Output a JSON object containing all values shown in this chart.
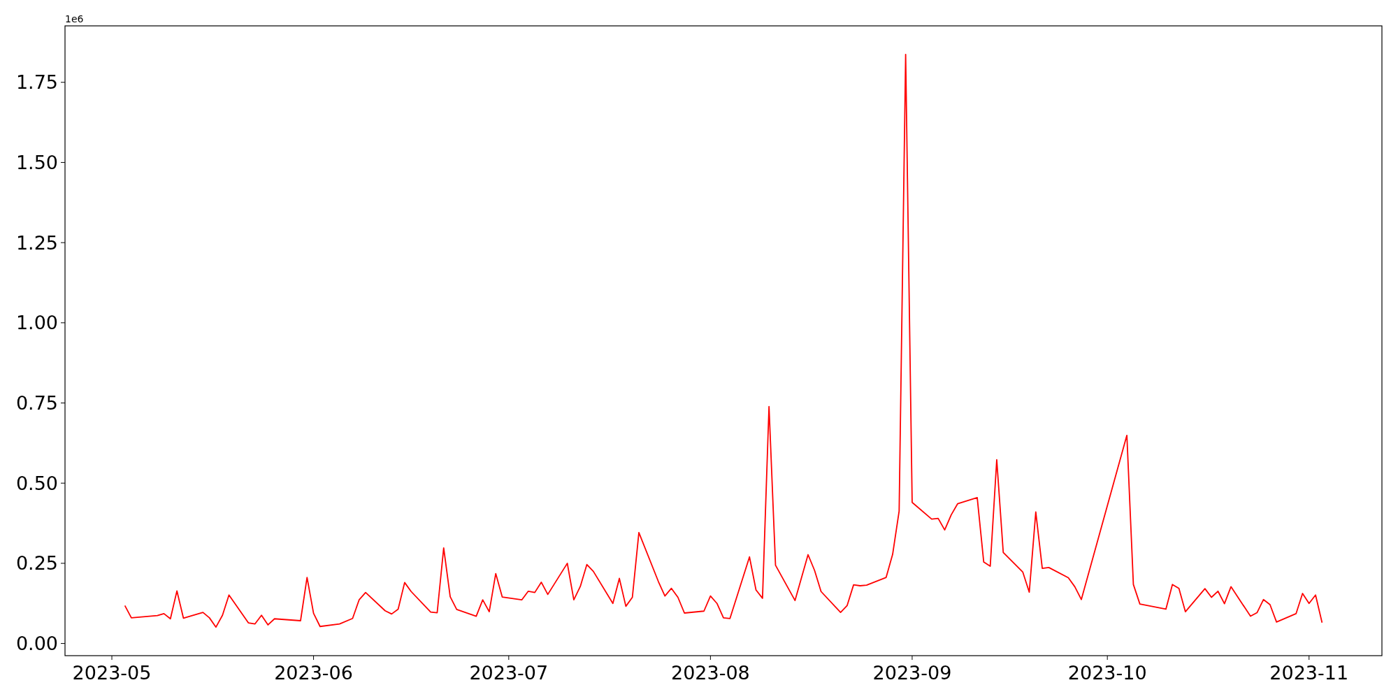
{
  "chart_data": {
    "type": "line",
    "annotations": [
      "1e6"
    ],
    "line_style": "solid",
    "marker": "none",
    "grid": false,
    "xlim": [
      "2023-04-23T19:12",
      "2023-11-12T04:48"
    ],
    "xticks": [
      {
        "value": "2023-05-01",
        "label": "2023-05"
      },
      {
        "value": "2023-06-01",
        "label": "2023-06"
      },
      {
        "value": "2023-07-01",
        "label": "2023-07"
      },
      {
        "value": "2023-08-01",
        "label": "2023-08"
      },
      {
        "value": "2023-09-01",
        "label": "2023-09"
      },
      {
        "value": "2023-10-01",
        "label": "2023-10"
      },
      {
        "value": "2023-11-01",
        "label": "2023-11"
      }
    ],
    "ylim": [
      -0.038,
      1.926
    ],
    "yticks": [
      {
        "value": 0,
        "label": "0.00"
      },
      0.25,
      {
        "value": 0.5,
        "label": "0.50"
      },
      0.75,
      {
        "value": 1,
        "label": "1.00"
      },
      1.25,
      {
        "value": 1.5,
        "label": "1.50"
      },
      1.75
    ],
    "x": [
      "2023-05-03",
      "2023-05-04",
      "2023-05-08",
      "2023-05-09",
      "2023-05-10",
      "2023-05-11",
      "2023-05-12",
      "2023-05-15",
      "2023-05-16",
      "2023-05-17",
      "2023-05-18",
      "2023-05-19",
      "2023-05-22",
      "2023-05-23",
      "2023-05-24",
      "2023-05-25",
      "2023-05-26",
      "2023-05-30",
      "2023-05-31",
      "2023-06-01",
      "2023-06-02",
      "2023-06-05",
      "2023-06-07",
      "2023-06-08",
      "2023-06-09",
      "2023-06-12",
      "2023-06-13",
      "2023-06-14",
      "2023-06-15",
      "2023-06-16",
      "2023-06-19",
      "2023-06-20",
      "2023-06-21",
      "2023-06-22",
      "2023-06-23",
      "2023-06-26",
      "2023-06-27",
      "2023-06-28",
      "2023-06-29",
      "2023-06-30",
      "2023-07-03",
      "2023-07-04",
      "2023-07-05",
      "2023-07-06",
      "2023-07-07",
      "2023-07-10",
      "2023-07-11",
      "2023-07-12",
      "2023-07-13",
      "2023-07-14",
      "2023-07-17",
      "2023-07-18",
      "2023-07-19",
      "2023-07-20",
      "2023-07-21",
      "2023-07-24",
      "2023-07-25",
      "2023-07-26",
      "2023-07-27",
      "2023-07-28",
      "2023-07-31",
      "2023-08-01",
      "2023-08-02",
      "2023-08-03",
      "2023-08-04",
      "2023-08-07",
      "2023-08-08",
      "2023-08-09",
      "2023-08-10",
      "2023-08-11",
      "2023-08-14",
      "2023-08-16",
      "2023-08-17",
      "2023-08-18",
      "2023-08-21",
      "2023-08-22",
      "2023-08-23",
      "2023-08-24",
      "2023-08-25",
      "2023-08-28",
      "2023-08-29",
      "2023-08-30",
      "2023-08-31",
      "2023-09-01",
      "2023-09-04",
      "2023-09-05",
      "2023-09-06",
      "2023-09-07",
      "2023-09-08",
      "2023-09-11",
      "2023-09-12",
      "2023-09-13",
      "2023-09-14",
      "2023-09-15",
      "2023-09-18",
      "2023-09-19",
      "2023-09-20",
      "2023-09-21",
      "2023-09-22",
      "2023-09-25",
      "2023-09-26",
      "2023-09-27",
      "2023-10-04",
      "2023-10-05",
      "2023-10-06",
      "2023-10-10",
      "2023-10-11",
      "2023-10-12",
      "2023-10-13",
      "2023-10-16",
      "2023-10-17",
      "2023-10-18",
      "2023-10-19",
      "2023-10-20",
      "2023-10-23",
      "2023-10-24",
      "2023-10-25",
      "2023-10-26",
      "2023-10-27",
      "2023-10-30",
      "2023-10-31",
      "2023-11-01",
      "2023-11-02",
      "2023-11-03"
    ],
    "series": [
      {
        "color": "#ff0000",
        "values": [
          0.118,
          0.08,
          0.087,
          0.093,
          0.077,
          0.164,
          0.079,
          0.097,
          0.08,
          0.051,
          0.088,
          0.151,
          0.064,
          0.061,
          0.088,
          0.058,
          0.077,
          0.071,
          0.206,
          0.094,
          0.053,
          0.061,
          0.078,
          0.136,
          0.159,
          0.102,
          0.092,
          0.107,
          0.19,
          0.162,
          0.098,
          0.096,
          0.298,
          0.146,
          0.106,
          0.085,
          0.136,
          0.099,
          0.218,
          0.145,
          0.136,
          0.163,
          0.159,
          0.191,
          0.153,
          0.25,
          0.136,
          0.178,
          0.246,
          0.225,
          0.125,
          0.203,
          0.116,
          0.144,
          0.346,
          0.193,
          0.148,
          0.172,
          0.144,
          0.095,
          0.101,
          0.148,
          0.125,
          0.08,
          0.078,
          0.27,
          0.167,
          0.141,
          0.739,
          0.244,
          0.134,
          0.277,
          0.228,
          0.162,
          0.097,
          0.118,
          0.183,
          0.18,
          0.182,
          0.206,
          0.278,
          0.413,
          1.837,
          0.44,
          0.388,
          0.39,
          0.354,
          0.401,
          0.436,
          0.455,
          0.254,
          0.241,
          0.573,
          0.284,
          0.223,
          0.16,
          0.41,
          0.234,
          0.237,
          0.205,
          0.177,
          0.137,
          0.649,
          0.184,
          0.123,
          0.107,
          0.184,
          0.172,
          0.099,
          0.171,
          0.144,
          0.163,
          0.124,
          0.177,
          0.085,
          0.096,
          0.137,
          0.121,
          0.067,
          0.093,
          0.156,
          0.125,
          0.151,
          0.065
        ]
      }
    ]
  }
}
